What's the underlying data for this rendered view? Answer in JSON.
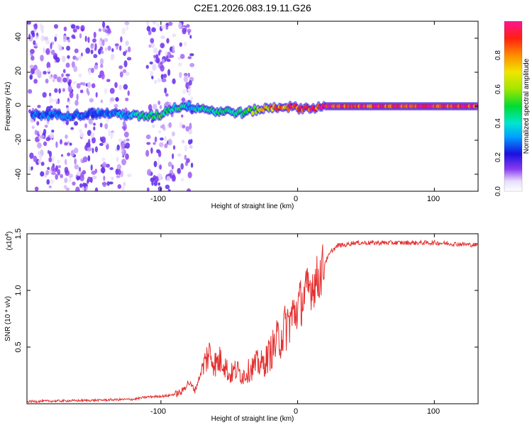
{
  "title": "C2E1.2026.083.19.11.G26",
  "top_plot": {
    "xlabel": "Height of straight line (km)",
    "ylabel": "Frequency (Hz)",
    "x_ticks": [
      "-100",
      "0",
      "100"
    ],
    "y_ticks": [
      "40",
      "20",
      "0",
      "-20",
      "-40"
    ],
    "colorbar": {
      "label": "Normalized spectral amplitude",
      "ticks": [
        "0.0",
        "0.2",
        "0.4",
        "0.6",
        "0.8"
      ]
    }
  },
  "bottom_plot": {
    "xlabel": "Height of straight line (km)",
    "ylabel": "SNR (10 * v/v)",
    "scale_label": "(x10",
    "scale_exp": "4",
    "scale_close": ")",
    "x_ticks": [
      "-100",
      "0",
      "100"
    ],
    "y_ticks": [
      "1.5",
      "1.0",
      "0.5"
    ]
  },
  "chart_data": [
    {
      "type": "heatmap",
      "title": "C2E1.2026.083.19.11.G26",
      "xlabel": "Height of straight line (km)",
      "ylabel": "Frequency (Hz)",
      "xlim": [
        -198,
        132
      ],
      "ylim": [
        -50,
        50
      ],
      "colorbar_range": [
        0,
        1
      ],
      "colorbar_label": "Normalized spectral amplitude",
      "ridge": {
        "description_points_x": [
          -185,
          -160,
          -140,
          -125,
          -115,
          -100,
          -95,
          -90,
          -85,
          -80,
          -70,
          -60,
          -50,
          -40,
          -30,
          -20,
          -10,
          0,
          10,
          20,
          130
        ],
        "frequency_hz": [
          -5,
          -5,
          -4,
          -5,
          -6,
          -5,
          -2,
          -1,
          0,
          0,
          -1,
          -3,
          -3,
          -4,
          -2,
          -1,
          0,
          -1,
          -1,
          0,
          0
        ],
        "amplitude": [
          0.3,
          0.3,
          0.3,
          0.35,
          0.45,
          0.5,
          0.5,
          0.4,
          0.5,
          0.35,
          0.45,
          0.45,
          0.45,
          0.5,
          0.65,
          0.8,
          0.85,
          0.9,
          0.95,
          0.95,
          0.95
        ]
      }
    },
    {
      "type": "line",
      "xlabel": "Height of straight line (km)",
      "ylabel": "SNR (10 * v/v)",
      "y_scale": "x10^4",
      "xlim": [
        -198,
        132
      ],
      "ylim": [
        0,
        1.5
      ],
      "color": "#e53030",
      "x": [
        -198,
        -150,
        -120,
        -110,
        -95,
        -85,
        -80,
        -75,
        -70,
        -65,
        -60,
        -55,
        -50,
        -45,
        -40,
        -35,
        -30,
        -25,
        -20,
        -15,
        -10,
        -5,
        0,
        5,
        10,
        15,
        20,
        25,
        30,
        35,
        40,
        60,
        80,
        100,
        132
      ],
      "values": [
        0.02,
        0.03,
        0.04,
        0.06,
        0.07,
        0.1,
        0.19,
        0.12,
        0.3,
        0.45,
        0.35,
        0.4,
        0.25,
        0.3,
        0.25,
        0.3,
        0.35,
        0.35,
        0.45,
        0.55,
        0.65,
        0.75,
        0.85,
        0.95,
        1.05,
        1.1,
        1.25,
        1.35,
        1.4,
        1.4,
        1.42,
        1.42,
        1.42,
        1.42,
        1.4
      ]
    }
  ]
}
